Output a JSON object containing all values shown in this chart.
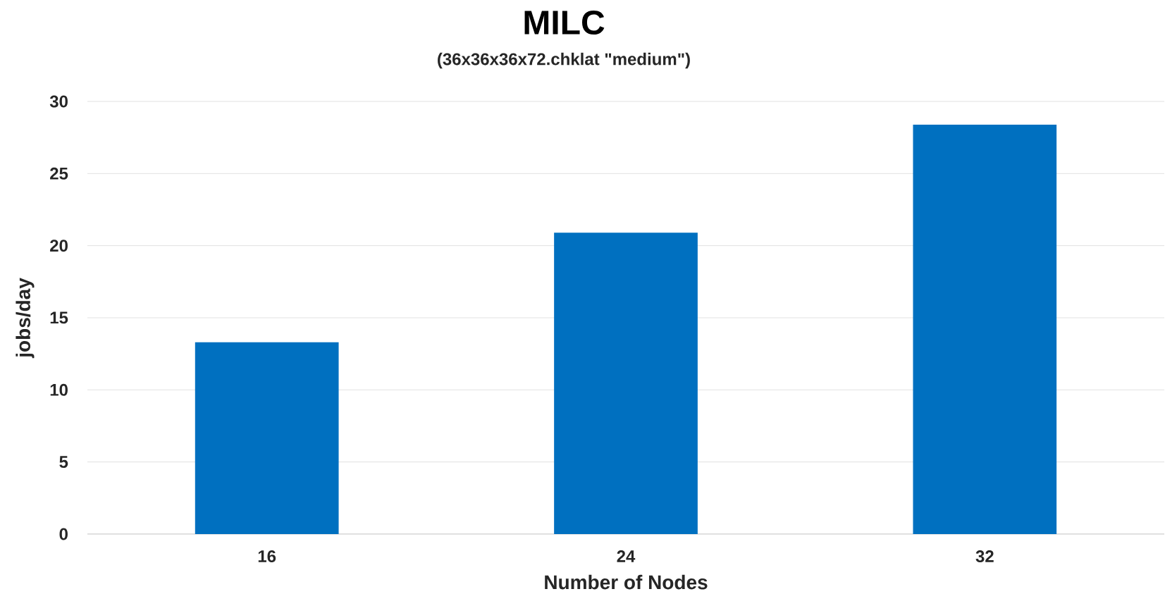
{
  "chart_data": {
    "type": "bar",
    "title": "MILC",
    "subtitle": "(36x36x36x72.chklat \"medium\")",
    "xlabel": "Number of Nodes",
    "ylabel": "jobs/day",
    "categories": [
      "16",
      "24",
      "32"
    ],
    "values": [
      13.3,
      20.9,
      28.4
    ],
    "color": "#0070c0",
    "ylim": [
      0,
      30
    ],
    "yticks": [
      0,
      5,
      10,
      15,
      20,
      25,
      30
    ],
    "grid": "y"
  }
}
